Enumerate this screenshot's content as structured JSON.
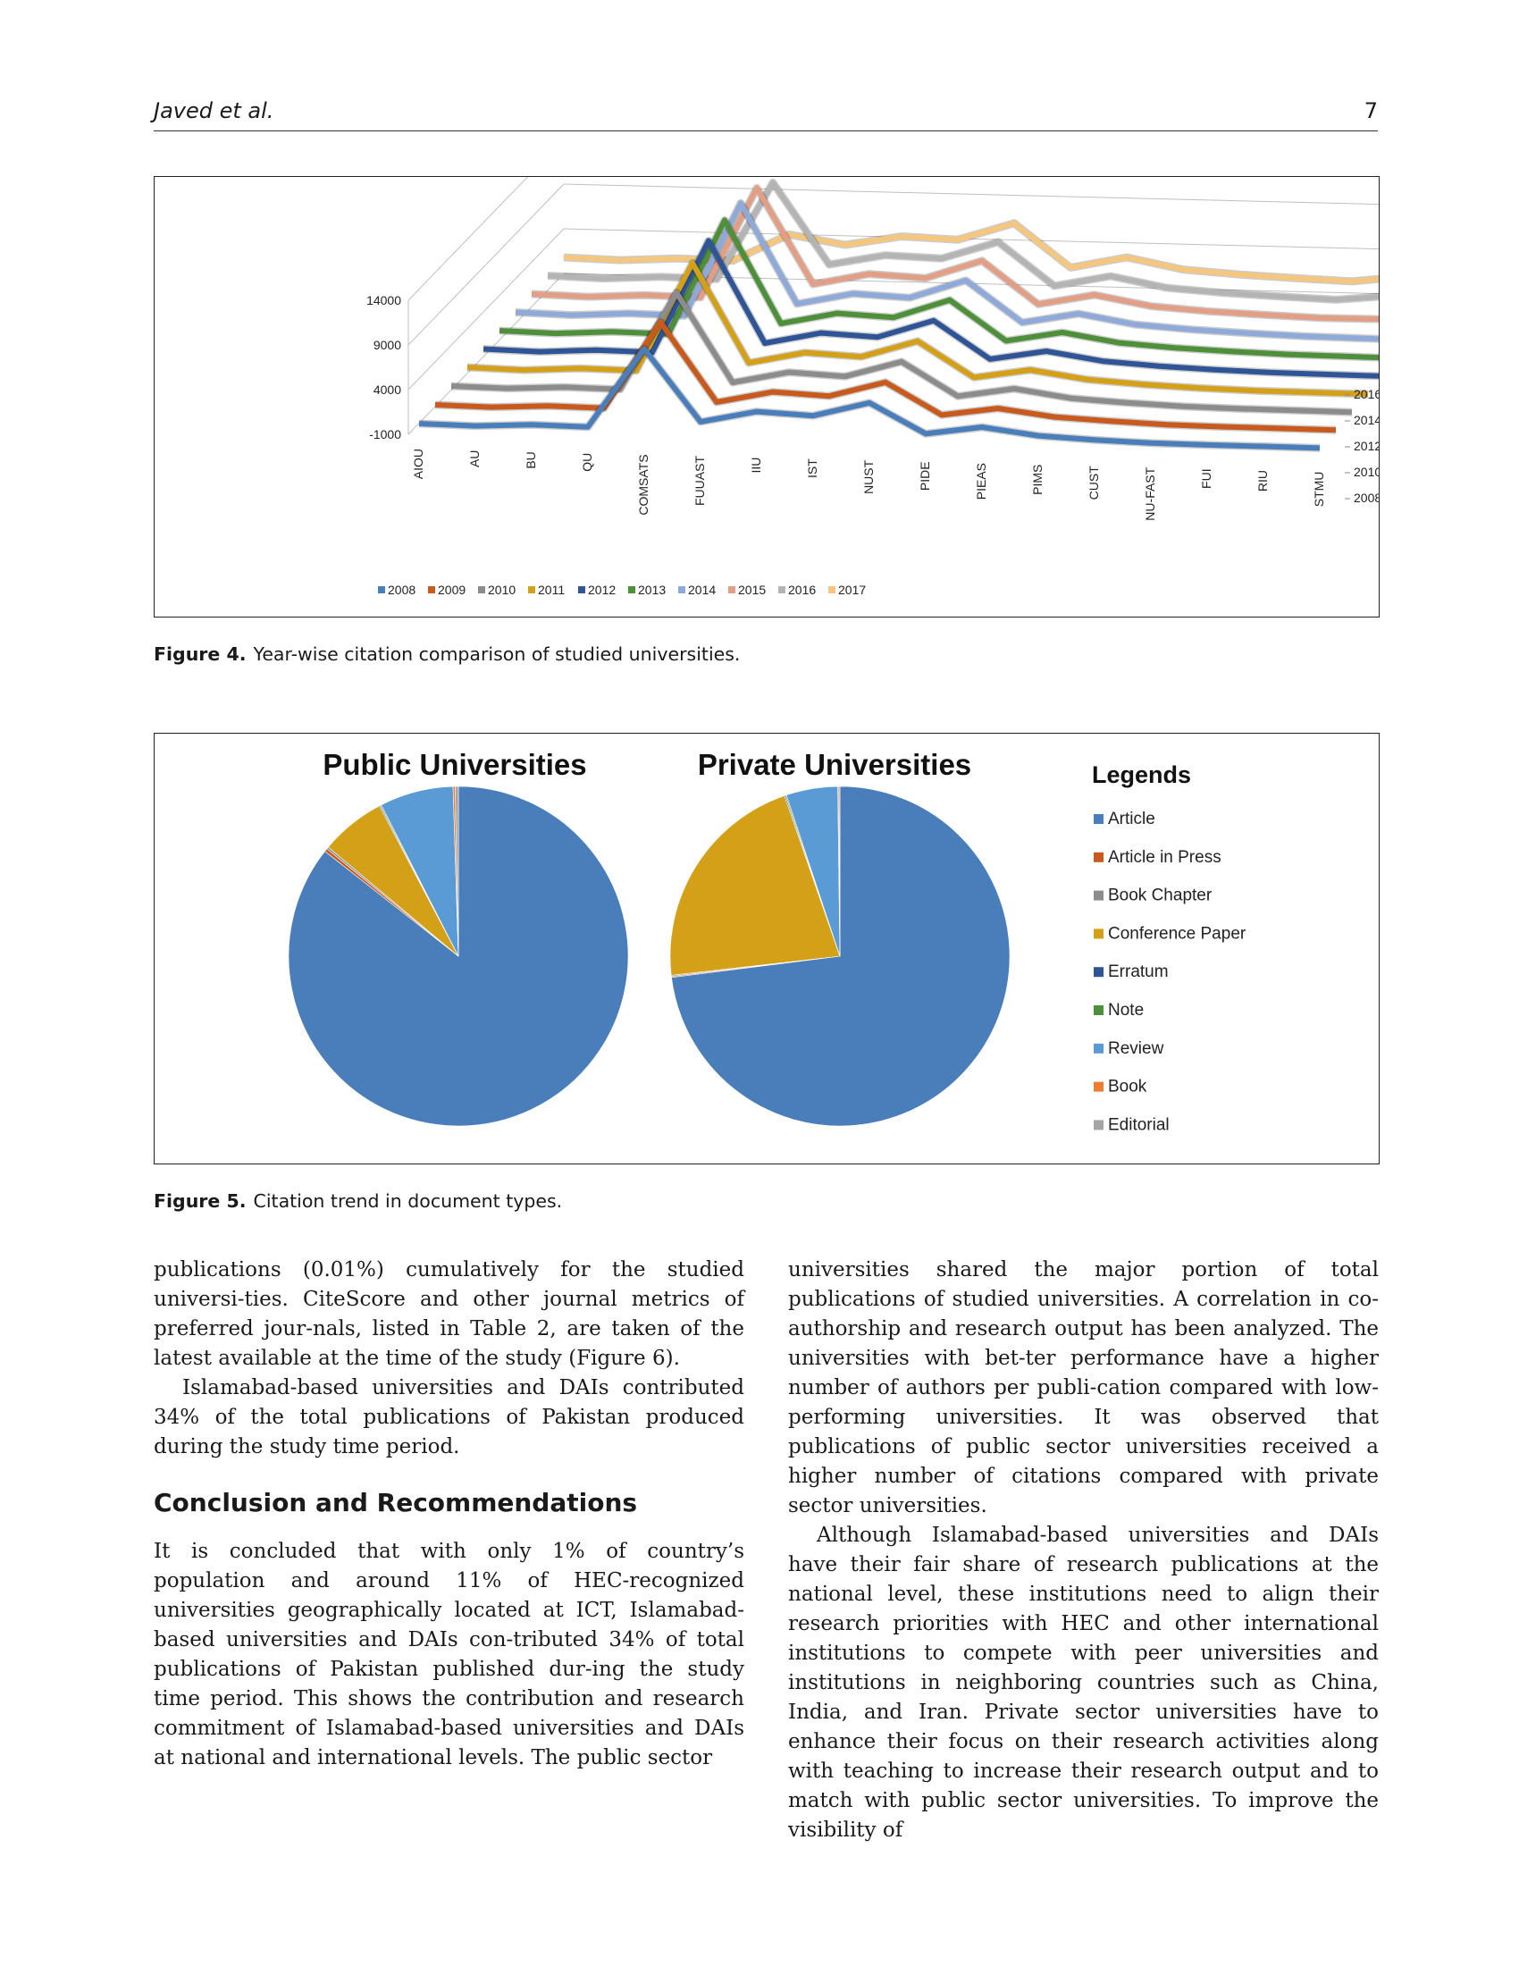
{
  "running_head": {
    "authors": "Javed et al.",
    "page_number": "7"
  },
  "figure4": {
    "caption_label": "Figure 4.",
    "caption_text": "Year-wise citation comparison of studied universities."
  },
  "figure5": {
    "caption_label": "Figure 5.",
    "caption_text": "Citation trend in document types."
  },
  "chart_data": [
    {
      "type": "line",
      "subtype": "3d-line",
      "title": "",
      "xlabel": "",
      "ylabel": "",
      "ylim": [
        -1000,
        14000
      ],
      "yticks": [
        "14000",
        "9000",
        "4000",
        "-1000"
      ],
      "depth_ticks": [
        "2016",
        "2014",
        "2012",
        "2010",
        "2008"
      ],
      "grid": true,
      "legend_position": "bottom",
      "categories": [
        "AIOU",
        "AU",
        "BU",
        "QU",
        "COMSATS",
        "FUUAST",
        "IIU",
        "IST",
        "NUST",
        "PIDE",
        "PIEAS",
        "PIMS",
        "CUST",
        "NU-FAST",
        "FUI",
        "RIU",
        "STMU"
      ],
      "series": [
        {
          "name": "2008",
          "color": "#4a7ebb",
          "values": [
            200,
            100,
            400,
            300,
            9200,
            1200,
            2500,
            2200,
            3800,
            500,
            1400,
            600,
            300,
            100,
            50,
            50,
            20
          ]
        },
        {
          "name": "2009",
          "color": "#c85a1e",
          "values": [
            300,
            200,
            500,
            400,
            10200,
            1400,
            2700,
            2400,
            4100,
            600,
            1500,
            700,
            400,
            150,
            80,
            60,
            30
          ]
        },
        {
          "name": "2010",
          "color": "#8c8c8c",
          "values": [
            400,
            300,
            600,
            500,
            11500,
            1600,
            2900,
            2600,
            4400,
            700,
            1700,
            800,
            450,
            200,
            100,
            80,
            40
          ]
        },
        {
          "name": "2011",
          "color": "#d4a017",
          "values": [
            500,
            350,
            700,
            600,
            12800,
            1800,
            3100,
            2800,
            4700,
            800,
            1800,
            900,
            500,
            250,
            120,
            90,
            50
          ]
        },
        {
          "name": "2012",
          "color": "#2f5597",
          "values": [
            550,
            400,
            750,
            650,
            13300,
            2000,
            3300,
            3000,
            5000,
            850,
            1900,
            950,
            550,
            300,
            150,
            100,
            60
          ]
        },
        {
          "name": "2013",
          "color": "#4e8f3a",
          "values": [
            600,
            450,
            800,
            700,
            13600,
            2200,
            3500,
            3200,
            5300,
            900,
            2000,
            1000,
            600,
            350,
            180,
            120,
            70
          ]
        },
        {
          "name": "2014",
          "color": "#8faad8",
          "values": [
            650,
            500,
            850,
            750,
            13500,
            2400,
            3700,
            3400,
            5500,
            950,
            2100,
            1050,
            650,
            400,
            220,
            150,
            80
          ]
        },
        {
          "name": "2015",
          "color": "#e39e86",
          "values": [
            700,
            550,
            900,
            800,
            13200,
            2600,
            3900,
            3600,
            5700,
            1000,
            2200,
            1100,
            700,
            450,
            260,
            300,
            150
          ]
        },
        {
          "name": "2016",
          "color": "#b4b4b4",
          "values": [
            750,
            600,
            950,
            850,
            11800,
            2800,
            4000,
            3800,
            5800,
            1050,
            2300,
            1150,
            750,
            500,
            300,
            900,
            350
          ]
        },
        {
          "name": "2017",
          "color": "#f5c77e",
          "values": [
            800,
            650,
            1000,
            900,
            4000,
            3000,
            4100,
            3900,
            5900,
            1100,
            2400,
            1200,
            800,
            550,
            350,
            1100,
            500
          ]
        }
      ]
    },
    {
      "type": "pie",
      "title": "Public Universities",
      "categories": [
        "Article",
        "Article in Press",
        "Book Chapter",
        "Conference Paper",
        "Erratum",
        "Note",
        "Review",
        "Book",
        "Editorial"
      ],
      "values": [
        85.6,
        0.3,
        0.2,
        6.2,
        0.1,
        0.1,
        7.0,
        0.2,
        0.3
      ]
    },
    {
      "type": "pie",
      "title": "Private Universities",
      "categories": [
        "Article",
        "Article in Press",
        "Book Chapter",
        "Conference Paper",
        "Erratum",
        "Note",
        "Review",
        "Book",
        "Editorial"
      ],
      "values": [
        73.0,
        0.1,
        0.1,
        21.5,
        0.1,
        0.1,
        4.9,
        0.1,
        0.1
      ]
    }
  ],
  "pie_legend": {
    "title": "Legends",
    "items": [
      {
        "label": "Article",
        "color": "#4a7ebb"
      },
      {
        "label": "Article in Press",
        "color": "#c85a1e"
      },
      {
        "label": "Book Chapter",
        "color": "#8c8c8c"
      },
      {
        "label": "Conference Paper",
        "color": "#d4a017"
      },
      {
        "label": "Erratum",
        "color": "#2f5597"
      },
      {
        "label": "Note",
        "color": "#4e8f3a"
      },
      {
        "label": "Review",
        "color": "#5b9bd5"
      },
      {
        "label": "Book",
        "color": "#ed7d31"
      },
      {
        "label": "Editorial",
        "color": "#a5a5a5"
      }
    ]
  },
  "body": {
    "left_p1": "publications (0.01%) cumulatively for the studied universi-ties. CiteScore and other journal metrics of preferred jour-nals, listed in Table 2, are taken of the latest available at the time of the study (Figure 6).",
    "left_p2": "Islamabad-based universities and DAIs contributed 34% of the total publications of Pakistan produced during the study time period.",
    "section_heading": "Conclusion and Recommendations",
    "left_p3": "It is concluded that with only 1% of country’s population and around 11% of HEC-recognized universities geographically located at ICT, Islamabad-based universities and DAIs con-tributed 34% of total publications of Pakistan published dur-ing the study time period. This shows the contribution and research commitment of Islamabad-based universities and DAIs at national and international levels. The public sector",
    "right_p1": "universities shared the major portion of total publications of studied universities. A correlation in co-authorship and research output has been analyzed. The universities with bet-ter performance have a higher number of authors per publi-cation compared with low-performing universities. It was observed that publications of public sector universities received a higher number of citations compared with private sector universities.",
    "right_p2": "Although Islamabad-based universities and DAIs have their fair share of research publications at the national level, these institutions need to align their research priorities with HEC and other international institutions to compete with peer universities and institutions in neighboring countries such as China, India, and Iran. Private sector universities have to enhance their focus on their research activities along with teaching to increase their research output and to match with public sector universities. To improve the visibility of"
  }
}
